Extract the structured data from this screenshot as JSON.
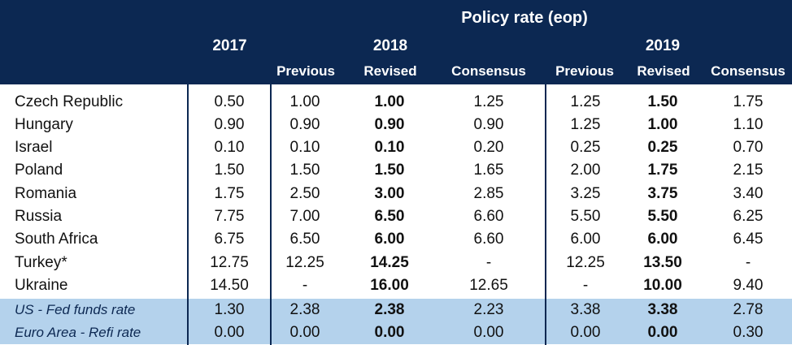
{
  "table": {
    "title": "Policy rate (eop)",
    "years": [
      "2017",
      "2018",
      "2019"
    ],
    "subheaders": [
      "Previous",
      "Revised",
      "Consensus",
      "Previous",
      "Revised",
      "Consensus"
    ],
    "rows": [
      {
        "label": "Czech Republic",
        "values": [
          "0.50",
          "1.00",
          "1.00",
          "1.25",
          "1.25",
          "1.50",
          "1.75"
        ]
      },
      {
        "label": "Hungary",
        "values": [
          "0.90",
          "0.90",
          "0.90",
          "0.90",
          "1.25",
          "1.00",
          "1.10"
        ]
      },
      {
        "label": "Israel",
        "values": [
          "0.10",
          "0.10",
          "0.10",
          "0.20",
          "0.25",
          "0.25",
          "0.70"
        ]
      },
      {
        "label": "Poland",
        "values": [
          "1.50",
          "1.50",
          "1.50",
          "1.65",
          "2.00",
          "1.75",
          "2.15"
        ]
      },
      {
        "label": "Romania",
        "values": [
          "1.75",
          "2.50",
          "3.00",
          "2.85",
          "3.25",
          "3.75",
          "3.40"
        ]
      },
      {
        "label": "Russia",
        "values": [
          "7.75",
          "7.00",
          "6.50",
          "6.60",
          "5.50",
          "5.50",
          "6.25"
        ]
      },
      {
        "label": "South Africa",
        "values": [
          "6.75",
          "6.50",
          "6.00",
          "6.60",
          "6.00",
          "6.00",
          "6.45"
        ]
      },
      {
        "label": "Turkey*",
        "values": [
          "12.75",
          "12.25",
          "14.25",
          "-",
          "12.25",
          "13.50",
          "-"
        ]
      },
      {
        "label": "Ukraine",
        "values": [
          "14.50",
          "-",
          "16.00",
          "12.65",
          "-",
          "10.00",
          "9.40"
        ]
      },
      {
        "label": "US - Fed funds rate",
        "values": [
          "1.30",
          "2.38",
          "2.38",
          "2.23",
          "3.38",
          "3.38",
          "2.78"
        ],
        "highlight": true
      },
      {
        "label": "Euro Area - Refi rate",
        "values": [
          "0.00",
          "0.00",
          "0.00",
          "0.00",
          "0.00",
          "0.00",
          "0.30"
        ],
        "highlight": true
      }
    ],
    "colors": {
      "header_bg": "#0c2852",
      "highlight_bg": "#b4d2ec"
    }
  }
}
